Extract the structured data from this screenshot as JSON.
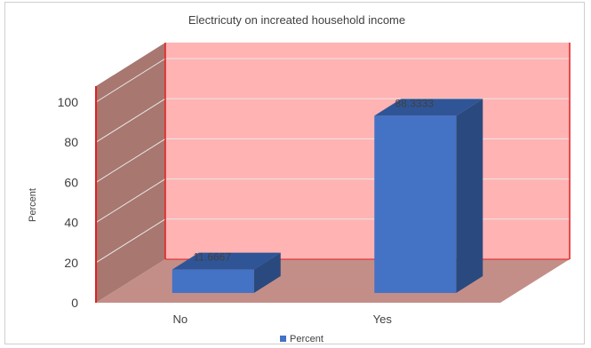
{
  "chart_data": {
    "type": "bar",
    "title": "Electricuty on increated household income",
    "xlabel": "",
    "ylabel": "Percent",
    "categories": [
      "No",
      "Yes"
    ],
    "series": [
      {
        "name": "Percent",
        "values": [
          11.6667,
          88.3333
        ]
      }
    ],
    "data_labels": [
      "11.6667",
      "88.3333"
    ],
    "yticks": [
      "0",
      "20",
      "40",
      "60",
      "80",
      "100"
    ],
    "ylim": [
      0,
      100
    ],
    "grid": true,
    "legend_position": "bottom",
    "style": "3d-column",
    "colors": {
      "bar_front": "#4472c4",
      "bar_top": "#2f5597",
      "bar_side": "#2a4a7f",
      "back_wall": "#ffb3b3",
      "side_wall": "#a87770",
      "floor": "#c48e88",
      "wall_edge": "#e02020",
      "gridline": "#e8e8e8",
      "text": "#404040"
    }
  }
}
